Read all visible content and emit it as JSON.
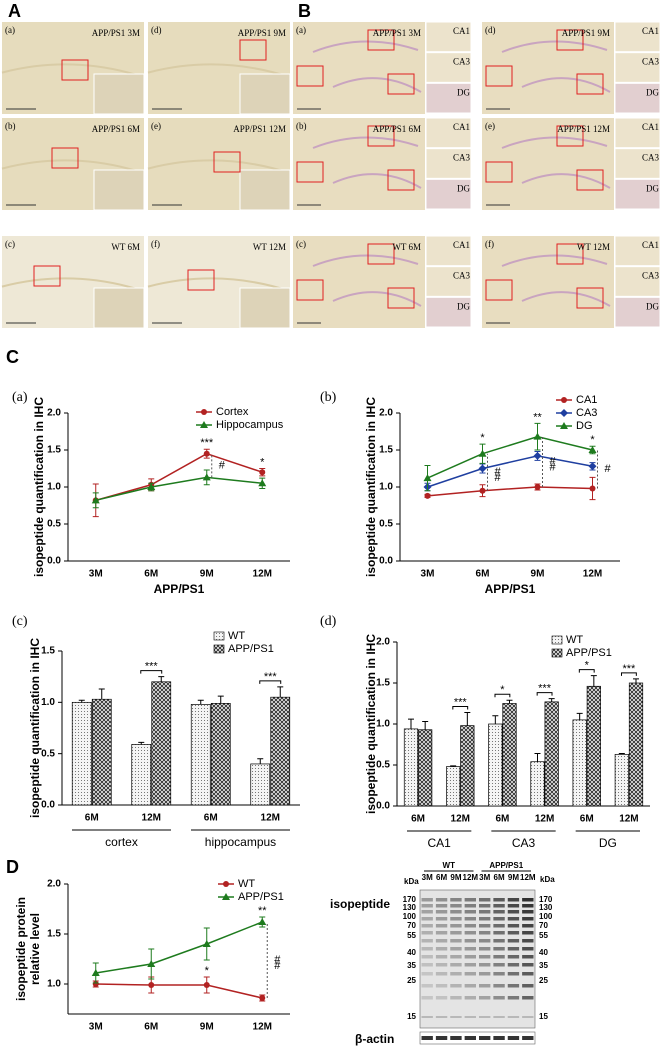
{
  "panel_letters": [
    "A",
    "B",
    "C",
    "D"
  ],
  "micrographs_A": [
    {
      "tag": "(a)",
      "label": "APP/PS1 3M"
    },
    {
      "tag": "(b)",
      "label": "APP/PS1 6M"
    },
    {
      "tag": "(c)",
      "label": "WT 6M"
    },
    {
      "tag": "(d)",
      "label": "APP/PS1 9M"
    },
    {
      "tag": "(e)",
      "label": "APP/PS1 12M"
    },
    {
      "tag": "(f)",
      "label": "WT 12M"
    }
  ],
  "micrographs_B": [
    {
      "tag": "(a)",
      "label": "APP/PS1 3M",
      "regions": [
        "CA1",
        "CA3",
        "DG"
      ]
    },
    {
      "tag": "(b)",
      "label": "APP/PS1 6M",
      "regions": [
        "CA1",
        "CA3",
        "DG"
      ]
    },
    {
      "tag": "(c)",
      "label": "WT 6M",
      "regions": [
        "CA1",
        "CA3",
        "DG"
      ]
    },
    {
      "tag": "(d)",
      "label": "APP/PS1 9M",
      "regions": [
        "CA1",
        "CA3",
        "DG"
      ]
    },
    {
      "tag": "(e)",
      "label": "APP/PS1 12M",
      "regions": [
        "CA1",
        "CA3",
        "DG"
      ]
    },
    {
      "tag": "(f)",
      "label": "WT 12M",
      "regions": [
        "CA1",
        "CA3",
        "DG"
      ]
    }
  ],
  "chart_data": [
    {
      "type": "line",
      "panel": "(a)",
      "ylabel": "isopeptide quantification in IHC",
      "xlabel": "APP/PS1",
      "categories": [
        "3M",
        "6M",
        "9M",
        "12M"
      ],
      "series": [
        {
          "name": "Cortex",
          "color": "#b22222",
          "marker": "circle",
          "values": [
            0.82,
            1.03,
            1.45,
            1.2
          ],
          "errors": [
            0.22,
            0.08,
            0.06,
            0.05
          ]
        },
        {
          "name": "Hippocampus",
          "color": "#1e7b1e",
          "marker": "triangle",
          "values": [
            0.82,
            1.0,
            1.13,
            1.05
          ],
          "errors": [
            0.1,
            0.05,
            0.1,
            0.07
          ]
        }
      ],
      "ylim": [
        0,
        2
      ],
      "yticks": [
        {
          "value": 0,
          "label": "0.0"
        },
        0.5,
        {
          "value": 1,
          "label": "1.0"
        },
        1.5,
        {
          "value": 2,
          "label": "2.0"
        }
      ],
      "annotations": [
        {
          "text": "***",
          "category": 2,
          "series": "Cortex"
        },
        {
          "text": "#",
          "category": 2
        },
        {
          "text": "*",
          "category": 3,
          "series": "Cortex"
        }
      ]
    },
    {
      "type": "line",
      "panel": "(b)",
      "ylabel": "isopeptide quantification in IHC",
      "xlabel": "APP/PS1",
      "categories": [
        "3M",
        "6M",
        "9M",
        "12M"
      ],
      "series": [
        {
          "name": "CA1",
          "color": "#b22222",
          "marker": "circle",
          "values": [
            0.88,
            0.95,
            1.0,
            0.98
          ],
          "errors": [
            0.02,
            0.08,
            0.04,
            0.15
          ]
        },
        {
          "name": "CA3",
          "color": "#1f3fa0",
          "marker": "diamond",
          "values": [
            1.0,
            1.25,
            1.42,
            1.28
          ],
          "errors": [
            0.05,
            0.06,
            0.06,
            0.05
          ]
        },
        {
          "name": "DG",
          "color": "#1e7b1e",
          "marker": "triangle",
          "values": [
            1.12,
            1.45,
            1.68,
            1.5
          ],
          "errors": [
            0.17,
            0.13,
            0.18,
            0.05
          ]
        }
      ],
      "ylim": [
        0,
        2
      ],
      "yticks": [
        {
          "value": 0,
          "label": "0.0"
        },
        0.5,
        {
          "value": 1,
          "label": "1.0"
        },
        1.5,
        {
          "value": 2,
          "label": "2.0"
        }
      ],
      "annotations": [
        {
          "text": "*",
          "category": 1,
          "series": "DG"
        },
        {
          "text": "#",
          "category": 1
        },
        {
          "text": "#",
          "category": 1
        },
        {
          "text": "**",
          "category": 2,
          "series": "DG"
        },
        {
          "text": "#",
          "category": 2
        },
        {
          "text": "#",
          "category": 2
        },
        {
          "text": "*",
          "category": 3,
          "series": "DG"
        },
        {
          "text": "#",
          "category": 3
        }
      ]
    },
    {
      "type": "bar",
      "panel": "(c)",
      "ylabel": "isopeptide quantification in IHC",
      "categories": [
        "6M",
        "12M",
        "6M",
        "12M"
      ],
      "groups": [
        "cortex",
        "hippocampus"
      ],
      "series": [
        {
          "name": "WT",
          "color": "#e4e4e4",
          "values": [
            1.0,
            0.59,
            0.98,
            0.4
          ],
          "errors": [
            0.02,
            0.02,
            0.04,
            0.05
          ]
        },
        {
          "name": "APP/PS1",
          "color": "#7a7a7a",
          "values": [
            1.03,
            1.2,
            0.99,
            1.05
          ],
          "errors": [
            0.1,
            0.05,
            0.07,
            0.1
          ]
        }
      ],
      "ylim": [
        0,
        1.5
      ],
      "yticks": [
        {
          "value": 0,
          "label": "0.0"
        },
        0.5,
        {
          "value": 1,
          "label": "1.0"
        },
        1.5
      ],
      "annotations": [
        {
          "text": "***",
          "category": 1
        },
        {
          "text": "***",
          "category": 3
        }
      ]
    },
    {
      "type": "bar",
      "panel": "(d)",
      "ylabel": "isopeptide quantification in IHC",
      "categories": [
        "6M",
        "12M",
        "6M",
        "12M",
        "6M",
        "12M"
      ],
      "groups": [
        "CA1",
        "CA3",
        "DG"
      ],
      "series": [
        {
          "name": "WT",
          "color": "#e4e4e4",
          "values": [
            0.94,
            0.48,
            1.0,
            0.54,
            1.05,
            0.63
          ],
          "errors": [
            0.12,
            0.01,
            0.1,
            0.1,
            0.08,
            0.01
          ]
        },
        {
          "name": "APP/PS1",
          "color": "#7a7a7a",
          "values": [
            0.93,
            0.98,
            1.25,
            1.27,
            1.46,
            1.5
          ],
          "errors": [
            0.1,
            0.16,
            0.04,
            0.04,
            0.13,
            0.05
          ]
        }
      ],
      "ylim": [
        0,
        2
      ],
      "yticks": [
        {
          "value": 0,
          "label": "0.0"
        },
        0.5,
        {
          "value": 1,
          "label": "1.0"
        },
        1.5,
        {
          "value": 2,
          "label": "2.0"
        }
      ],
      "annotations": [
        {
          "text": "***",
          "category": 1
        },
        {
          "text": "*",
          "category": 2
        },
        {
          "text": "***",
          "category": 3
        },
        {
          "text": "*",
          "category": 4
        },
        {
          "text": "***",
          "category": 5
        }
      ]
    },
    {
      "type": "line",
      "ylabel": [
        "isopeptide protein",
        "relative level"
      ],
      "categories": [
        "3M",
        "6M",
        "9M",
        "12M"
      ],
      "series": [
        {
          "name": "WT",
          "color": "#b22222",
          "marker": "circle",
          "values": [
            1.0,
            0.99,
            0.99,
            0.86
          ],
          "errors": [
            0.03,
            0.08,
            0.08,
            0.03
          ]
        },
        {
          "name": "APP/PS1",
          "color": "#1e7b1e",
          "marker": "triangle",
          "values": [
            1.11,
            1.2,
            1.4,
            1.62
          ],
          "errors": [
            0.1,
            0.15,
            0.16,
            0.05
          ]
        }
      ],
      "ylim": [
        0.7,
        2
      ],
      "yticks": [
        {
          "value": 1,
          "label": "1.0"
        },
        1.5,
        {
          "value": 2,
          "label": "2.0"
        }
      ],
      "annotations": [
        {
          "text": "**",
          "category": 3,
          "series": "APP/PS1"
        },
        {
          "text": "*",
          "category": 2,
          "series": "WT"
        },
        {
          "text": "#",
          "category": 3
        },
        {
          "text": "#",
          "category": 3
        }
      ]
    }
  ],
  "blot": {
    "label": "isopeptide",
    "loading": "β-actin",
    "unit": "kDa",
    "groups": [
      "WT",
      "APP/PS1"
    ],
    "lanes": [
      "3M",
      "6M",
      "9M",
      "12M",
      "3M",
      "6M",
      "9M",
      "12M"
    ],
    "markers": [
      "170",
      "130",
      "100",
      "70",
      "55",
      "40",
      "35",
      "25",
      "15"
    ]
  }
}
